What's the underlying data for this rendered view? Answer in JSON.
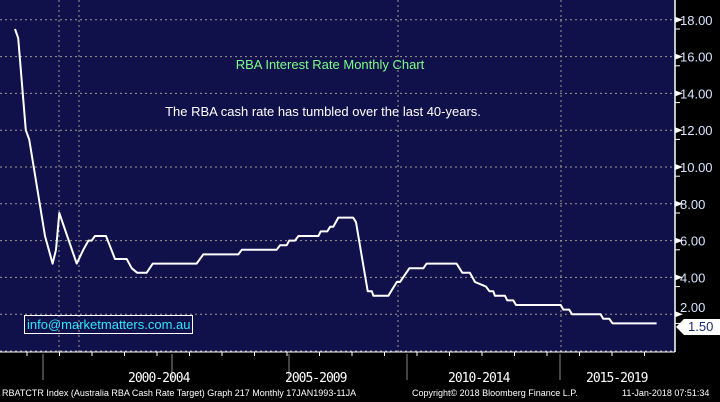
{
  "chart_data": {
    "type": "line",
    "title": "RBA Interest Rate Monthly Chart",
    "subtitle": "The RBA cash rate has tumbled over the last 40-years.",
    "ylabel": "",
    "xlabel": "",
    "ylim": [
      0,
      19
    ],
    "xlim": [
      1990,
      2018.5
    ],
    "y_ticks": [
      "18.00",
      "16.00",
      "14.00",
      "12.00",
      "10.00",
      "8.00",
      "6.00",
      "4.00",
      "2.00"
    ],
    "x_period_labels": [
      "2000-2004",
      "2005-2009",
      "2010-2014",
      "2015-2019"
    ],
    "grid": true,
    "last_value_label": "1.50",
    "series": [
      {
        "name": "RBATCTR Index",
        "color": "#ffffff",
        "points": [
          [
            1990.0,
            17.5
          ],
          [
            1990.14,
            17.0
          ],
          [
            1990.47,
            12.0
          ],
          [
            1990.62,
            11.5
          ],
          [
            1991.31,
            6.25
          ],
          [
            1991.64,
            4.75
          ],
          [
            1991.79,
            5.5
          ],
          [
            1991.93,
            7.5
          ],
          [
            1992.69,
            4.75
          ],
          [
            1992.98,
            5.5
          ],
          [
            1993.2,
            6.0
          ],
          [
            1993.34,
            6.0
          ],
          [
            1993.49,
            6.25
          ],
          [
            1993.97,
            6.25
          ],
          [
            1994.36,
            5.0
          ],
          [
            1994.87,
            5.0
          ],
          [
            1995.09,
            4.5
          ],
          [
            1995.33,
            4.25
          ],
          [
            1995.74,
            4.25
          ],
          [
            1996.01,
            4.75
          ],
          [
            1997.92,
            4.75
          ],
          [
            1998.21,
            5.25
          ],
          [
            1999.74,
            5.25
          ],
          [
            1999.89,
            5.5
          ],
          [
            2001.41,
            5.5
          ],
          [
            2001.56,
            5.75
          ],
          [
            2001.85,
            5.75
          ],
          [
            2001.96,
            6.0
          ],
          [
            2002.21,
            6.0
          ],
          [
            2002.36,
            6.25
          ],
          [
            2003.23,
            6.25
          ],
          [
            2003.33,
            6.5
          ],
          [
            2003.62,
            6.5
          ],
          [
            2003.74,
            6.75
          ],
          [
            2003.88,
            6.75
          ],
          [
            2004.1,
            7.25
          ],
          [
            2004.75,
            7.25
          ],
          [
            2004.87,
            7.0
          ],
          [
            2005.38,
            3.25
          ],
          [
            2005.56,
            3.25
          ],
          [
            2005.63,
            3.0
          ],
          [
            2006.28,
            3.0
          ],
          [
            2006.65,
            3.75
          ],
          [
            2006.79,
            3.75
          ],
          [
            2007.2,
            4.5
          ],
          [
            2007.81,
            4.5
          ],
          [
            2007.95,
            4.75
          ],
          [
            2009.26,
            4.75
          ],
          [
            2009.51,
            4.25
          ],
          [
            2009.84,
            4.25
          ],
          [
            2010.06,
            3.75
          ],
          [
            2010.54,
            3.5
          ],
          [
            2010.69,
            3.25
          ],
          [
            2010.86,
            3.25
          ],
          [
            2010.93,
            3.0
          ],
          [
            2011.37,
            3.0
          ],
          [
            2011.47,
            2.75
          ],
          [
            2011.73,
            2.75
          ],
          [
            2011.85,
            2.5
          ],
          [
            2013.8,
            2.5
          ],
          [
            2013.91,
            2.25
          ],
          [
            2014.17,
            2.25
          ],
          [
            2014.29,
            2.0
          ],
          [
            2015.54,
            2.0
          ],
          [
            2015.65,
            1.75
          ],
          [
            2015.92,
            1.75
          ],
          [
            2016.06,
            1.5
          ],
          [
            2017.98,
            1.5
          ]
        ]
      }
    ]
  },
  "watermark_email": "info@marketmatters.com.au",
  "footer": {
    "index": "RBATCTR Index (Australia RBA Cash Rate Target) Graph 217  Monthly 17JAN1993-11JA",
    "copyright": "Copyright© 2018 Bloomberg Finance L.P.",
    "timestamp": "11-Jan-2018 07:51:34"
  },
  "colors": {
    "background": "#10104a",
    "line": "#ffffff",
    "title": "#7cff8a",
    "email": "#2fe6ff",
    "axis_text": "#d8e4ff"
  }
}
